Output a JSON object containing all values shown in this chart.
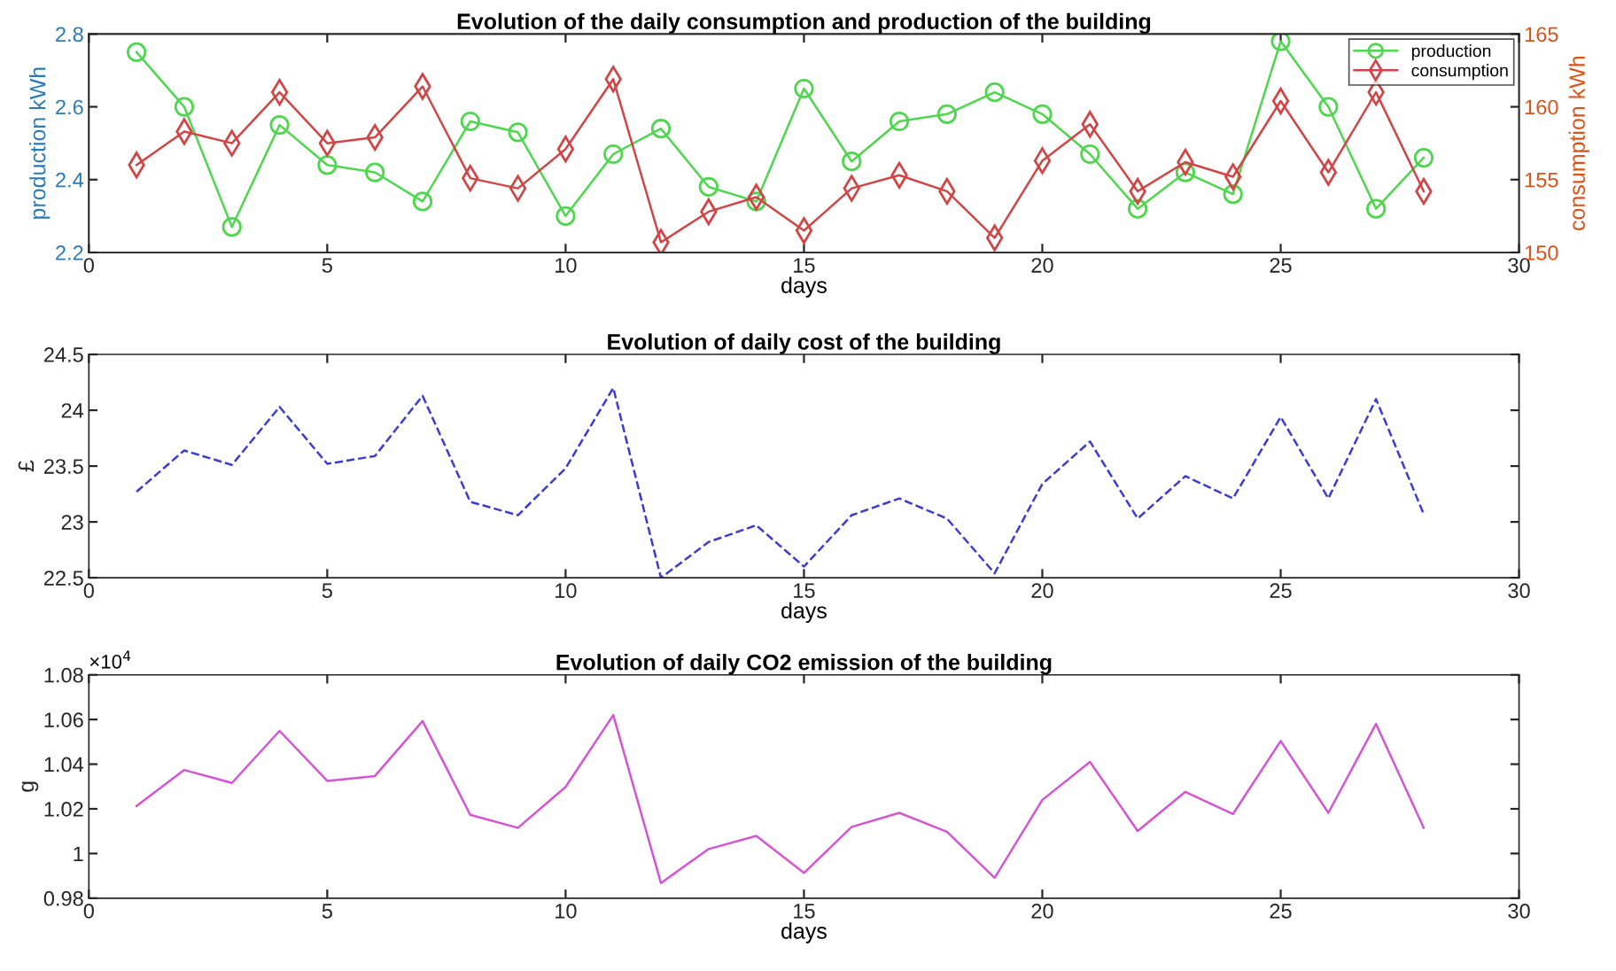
{
  "chart_data": [
    {
      "type": "line",
      "title": "Evolution of the daily consumption and production of the building",
      "xlabel": "days",
      "ylabel": "production kWh",
      "y2label": "consumption kWh",
      "x": [
        1,
        2,
        3,
        4,
        5,
        6,
        7,
        8,
        9,
        10,
        11,
        12,
        13,
        14,
        15,
        16,
        17,
        18,
        19,
        20,
        21,
        22,
        23,
        24,
        25,
        26,
        27,
        28
      ],
      "xlim": [
        0,
        30
      ],
      "xticks": [
        0,
        5,
        10,
        15,
        20,
        25,
        30
      ],
      "ylim": [
        2.2,
        2.8
      ],
      "yticks": [
        2.2,
        2.4,
        2.6,
        2.8
      ],
      "y2lim": [
        150,
        165
      ],
      "y2ticks": [
        150,
        155,
        160,
        165
      ],
      "legend": "top right",
      "grid": false,
      "series": [
        {
          "name": "production",
          "color": "#4fd64f",
          "marker": "circle",
          "values": [
            2.75,
            2.6,
            2.27,
            2.55,
            2.44,
            2.42,
            2.34,
            2.56,
            2.53,
            2.3,
            2.47,
            2.54,
            2.38,
            2.34,
            2.65,
            2.45,
            2.56,
            2.58,
            2.64,
            2.58,
            2.47,
            2.32,
            2.42,
            2.36,
            2.78,
            2.6,
            2.32,
            2.46
          ]
        },
        {
          "name": "consumption",
          "color": "#d04545",
          "marker": "diamond",
          "axis": "y2",
          "values": [
            156.0,
            158.3,
            157.5,
            161.0,
            157.5,
            157.9,
            161.4,
            155.1,
            154.4,
            157.1,
            161.9,
            150.7,
            152.8,
            153.8,
            151.5,
            154.4,
            155.3,
            154.2,
            151.0,
            156.3,
            158.8,
            154.2,
            156.2,
            155.2,
            160.4,
            155.5,
            161.0,
            154.2
          ]
        }
      ]
    },
    {
      "type": "line",
      "title": "Evolution of daily cost of the building",
      "xlabel": "days",
      "ylabel": "£",
      "x": [
        1,
        2,
        3,
        4,
        5,
        6,
        7,
        8,
        9,
        10,
        11,
        12,
        13,
        14,
        15,
        16,
        17,
        18,
        19,
        20,
        21,
        22,
        23,
        24,
        25,
        26,
        27,
        28
      ],
      "xlim": [
        0,
        30
      ],
      "xticks": [
        0,
        5,
        10,
        15,
        20,
        25,
        30
      ],
      "ylim": [
        22.5,
        24.5
      ],
      "yticks": [
        22.5,
        23,
        23.5,
        24,
        24.5
      ],
      "grid": false,
      "line_style": "dashed",
      "series": [
        {
          "color": "#3c3cd0",
          "values": [
            23.27,
            23.64,
            23.51,
            24.03,
            23.52,
            23.59,
            24.13,
            23.18,
            23.06,
            23.48,
            24.2,
            22.5,
            22.82,
            22.97,
            22.6,
            23.06,
            23.21,
            23.03,
            22.54,
            23.34,
            23.72,
            23.03,
            23.41,
            23.21,
            23.94,
            23.21,
            24.1,
            23.07
          ]
        }
      ]
    },
    {
      "type": "line",
      "title": "Evolution of daily CO2 emission of the building",
      "xlabel": "days",
      "ylabel": "g",
      "annotations": [
        "×10$^{4}$"
      ],
      "x": [
        1,
        2,
        3,
        4,
        5,
        6,
        7,
        8,
        9,
        10,
        11,
        12,
        13,
        14,
        15,
        16,
        17,
        18,
        19,
        20,
        21,
        22,
        23,
        24,
        25,
        26,
        27,
        28
      ],
      "xlim": [
        0,
        30
      ],
      "xticks": [
        0,
        5,
        10,
        15,
        20,
        25,
        30
      ],
      "ylim": [
        0.98,
        1.08
      ],
      "yticks": [
        0.98,
        1,
        1.02,
        1.04,
        1.06,
        1.08
      ],
      "grid": false,
      "series": [
        {
          "color": "#d455d4",
          "values": [
            1.0213,
            1.0374,
            1.0316,
            1.0549,
            1.0325,
            1.0347,
            1.0593,
            1.0173,
            1.0115,
            1.0298,
            1.062,
            0.9868,
            1.002,
            1.0079,
            0.9913,
            1.0119,
            1.0182,
            1.0097,
            0.9891,
            1.024,
            1.041,
            1.0101,
            1.0276,
            1.0177,
            1.0504,
            1.0182,
            1.058,
            1.0115
          ]
        }
      ]
    }
  ]
}
